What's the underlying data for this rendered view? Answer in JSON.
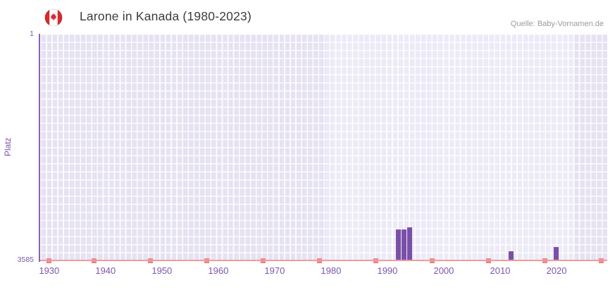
{
  "header": {
    "title": "Larone in Kanada (1980-2023)",
    "source": "Quelle: Baby-Vornamen.de"
  },
  "chart_data": {
    "type": "bar",
    "title": "Larone in Kanada (1980-2023)",
    "xlabel": "",
    "ylabel": "Platz",
    "y_axis": {
      "min": 1,
      "max": 3585,
      "inverted": true,
      "top_label": "1",
      "bottom_label": "3585"
    },
    "x_axis": {
      "min": 1928.4,
      "max": 2029,
      "ticks": [
        1930,
        1940,
        1950,
        1960,
        1970,
        1980,
        1990,
        2000,
        2010,
        2020
      ]
    },
    "highlight_range": {
      "from": 1979,
      "to": 2023
    },
    "series": [
      {
        "name": "Platz",
        "color": "#7a50a7",
        "points": [
          {
            "year": 1992,
            "rank": 3095
          },
          {
            "year": 1993,
            "rank": 3095
          },
          {
            "year": 1994,
            "rank": 3060
          },
          {
            "year": 2012,
            "rank": 3440
          },
          {
            "year": 2020,
            "rank": 3375
          }
        ]
      }
    ],
    "baseline_markers": {
      "color": "#ee8686",
      "years": [
        1930,
        1938,
        1948,
        1958,
        1968,
        1978,
        1988,
        1998,
        2008,
        2018,
        2028
      ]
    },
    "grid": true,
    "legend": "none",
    "plot_colors": {
      "base": "#e6e2f1",
      "highlight": "#edeaf7",
      "grid_line": "#ffffff",
      "x_axis_line": "#f09c9c",
      "y_axis_line": "#8a62b8",
      "tick_label": "#7d55ad"
    }
  }
}
